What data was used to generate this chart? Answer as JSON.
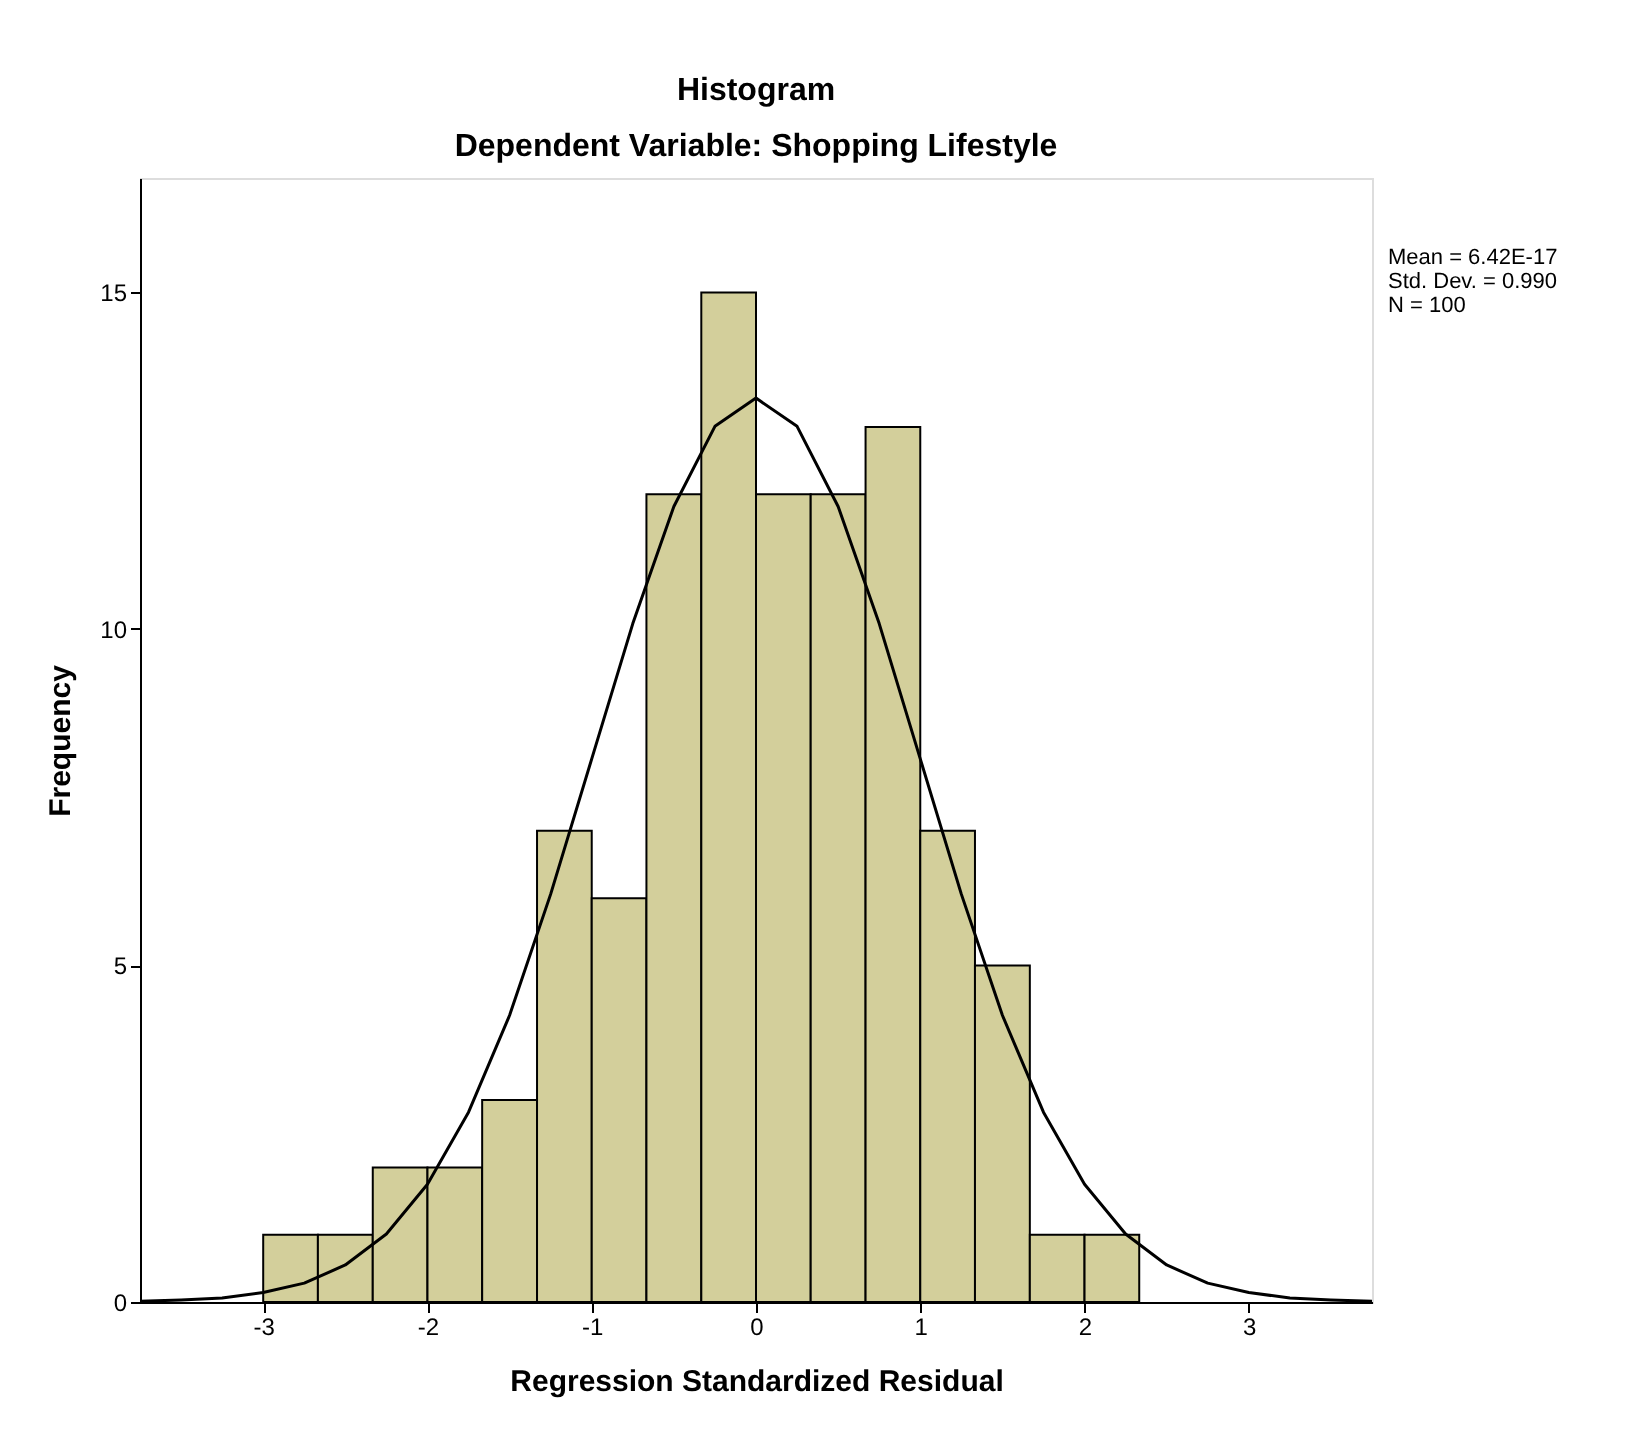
{
  "chart_data": {
    "type": "histogram",
    "title": "Histogram",
    "subtitle": "Dependent Variable: Shopping Lifestyle",
    "xlabel": "Regression Standardized Residual",
    "ylabel": "Frequency",
    "bins": [
      -3,
      -2.667,
      -2.333,
      -2,
      -1.667,
      -1.333,
      -1,
      -0.667,
      -0.333,
      0,
      0.333,
      0.667,
      1,
      1.333,
      1.667,
      2,
      2.333
    ],
    "values": [
      1,
      1,
      2,
      2,
      3,
      7,
      6,
      12,
      15,
      12,
      12,
      13,
      7,
      5,
      1,
      1
    ],
    "color": "#d3cf9b",
    "series": [
      {
        "type": "line",
        "color": "#000000",
        "x": [
          -3.75,
          -3.5,
          -3.25,
          -3,
          -2.75,
          -2.5,
          -2.25,
          -2,
          -1.75,
          -1.5,
          -1.25,
          -1,
          -0.75,
          -0.5,
          -0.25,
          0,
          0.25,
          0.5,
          0.75,
          1,
          1.25,
          1.5,
          1.75,
          2,
          2.25,
          2.5,
          2.75,
          3,
          3.25,
          3.5,
          3.75
        ],
        "values": [
          0.01,
          0.03,
          0.06,
          0.14,
          0.28,
          0.55,
          1.01,
          1.75,
          2.82,
          4.26,
          6.06,
          8.07,
          10.08,
          11.82,
          13.01,
          13.43,
          13.01,
          11.82,
          10.08,
          8.07,
          6.06,
          4.26,
          2.82,
          1.75,
          1.01,
          0.55,
          0.28,
          0.14,
          0.06,
          0.03,
          0.01
        ]
      }
    ],
    "xlim": [
      -3.75,
      3.75
    ],
    "xticks": [
      -3,
      -2,
      -1,
      0,
      1,
      2,
      3
    ],
    "ylim": [
      0,
      16.7
    ],
    "yticks": [
      0,
      5,
      10,
      15
    ],
    "grid": false,
    "annotations": [
      "Mean = 6.42E-17",
      "Std. Dev. = 0.990",
      "N = 100"
    ]
  }
}
